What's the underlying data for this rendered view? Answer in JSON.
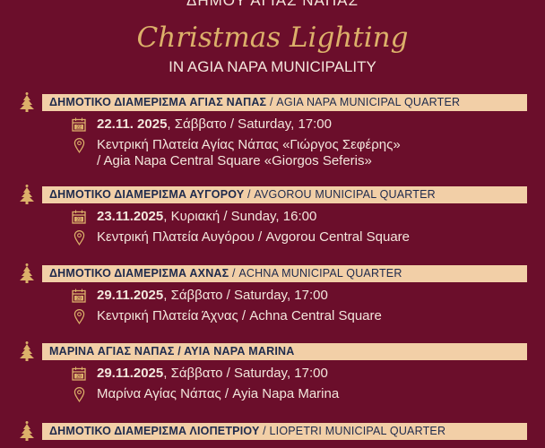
{
  "header": {
    "municipality_gr": "ΔΗΜΟΥ ΑΓΙΑΣ ΝΑΠΑΣ",
    "title": "Christmas Lighting",
    "subtitle": "IN AGIA NAPA MUNICIPALITY"
  },
  "colors": {
    "background": "#6b0e2b",
    "band": "#f2cfa7",
    "band_text": "#1e2a4c",
    "gold": "#dcb06a"
  },
  "events": [
    {
      "quarter_gr": "ΔΗΜΟΤΙΚΟ ΔΙΑΜΕΡΙΣΜΑ ΑΓΙΑΣ ΝΑΠΑΣ",
      "quarter_en": " / AGIA NAPA MUNICIPAL QUARTER",
      "day": "22",
      "date": "22.11. 2025",
      "when": ", Σάββατο / Saturday, 17:00",
      "location": "Κεντρική Πλατεία Αγίας Νάπας «Γιώργος Σεφέρης»",
      "location2": "/ Agia Napa Central Square «Giorgos Seferis»"
    },
    {
      "quarter_gr": "ΔΗΜΟΤΙΚΟ ΔΙΑΜΕΡΙΣΜΑ ΑΥΓΟΡΟΥ",
      "quarter_en": " / AVGOROU MUNICIPAL QUARTER",
      "day": "23",
      "date": "23.11.2025",
      "when": ", Κυριακή / Sunday, 16:00",
      "location": "Κεντρική Πλατεία Αυγόρου / Avgorou Central Square"
    },
    {
      "quarter_gr": "ΔΗΜΟΤΙΚΟ ΔΙΑΜΕΡΙΣΜΑ ΑΧΝΑΣ",
      "quarter_en": " / ACHNA MUNICIPAL QUARTER",
      "day": "29",
      "date": "29.11.2025",
      "when": ", Σάββατο / Saturday, 17:00",
      "location": "Κεντρική Πλατεία Άχνας  / Achna Central Square"
    },
    {
      "quarter_gr": "ΜΑΡΙΝΑ ΑΓΙΑΣ ΝΑΠΑΣ / ΑΥΙΑ ΝΑΡΑ MARINA",
      "quarter_en": "",
      "day": "29",
      "date": "29.11.2025",
      "when": ", Σάββατο / Saturday, 17:00",
      "location": "Μαρίνα Αγίας Νάπας / Ayia Napa Marina"
    },
    {
      "quarter_gr": "ΔΗΜΟΤΙΚΟ ΔΙΑΜΕΡΙΣΜΑ ΛΙΟΠΕΤΡΙΟΥ",
      "quarter_en": " / LIOPETRI MUNICIPAL QUARTER"
    }
  ]
}
